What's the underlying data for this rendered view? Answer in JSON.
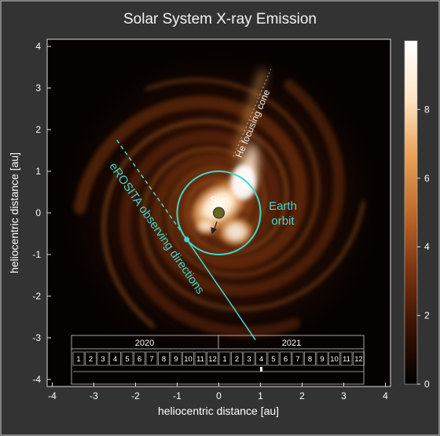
{
  "chart_data": {
    "type": "heatmap",
    "title": "Solar System X-ray Emission",
    "xlabel": "heliocentric distance  [au]",
    "ylabel": "heliocentric distance  [au]",
    "xlim": [
      -4.3,
      4.3
    ],
    "ylim": [
      -4.3,
      4.3
    ],
    "x_ticks": [
      -4,
      -3,
      -2,
      -1,
      0,
      1,
      2,
      3,
      4
    ],
    "y_ticks": [
      -4,
      -3,
      -2,
      -1,
      0,
      1,
      2,
      3,
      4
    ],
    "colorbar": {
      "range": [
        0,
        10
      ],
      "ticks": [
        0,
        2,
        4,
        6,
        8
      ],
      "colors": [
        "#000000",
        "#3a1204",
        "#7a3410",
        "#c06a28",
        "#eaa256",
        "#ffe6c8",
        "#ffffff"
      ]
    },
    "sun": {
      "label": "Sun",
      "x": 0,
      "y": 0
    },
    "earth_orbit": {
      "label_line1": "Earth",
      "label_line2": "orbit",
      "radius": 1.0,
      "color": "#3fd9cc",
      "marker": {
        "x": -0.77,
        "y": -0.64
      }
    },
    "he_cone": {
      "label": "He focusing cone",
      "from": [
        0.35,
        1.35
      ],
      "to": [
        1.25,
        3.45
      ]
    },
    "erosita": {
      "label": "eROSITA observing directions",
      "dashed_from": [
        -2.45,
        1.75
      ],
      "dashed_to": [
        -0.77,
        -0.64
      ],
      "solid_to": [
        0.88,
        -3.05
      ],
      "color": "#3fd9cc"
    },
    "timeline": {
      "years": [
        "2020",
        "2021"
      ],
      "months": [
        "1",
        "2",
        "3",
        "4",
        "5",
        "6",
        "7",
        "8",
        "9",
        "10",
        "11",
        "12"
      ],
      "current_month_index": 15
    }
  }
}
